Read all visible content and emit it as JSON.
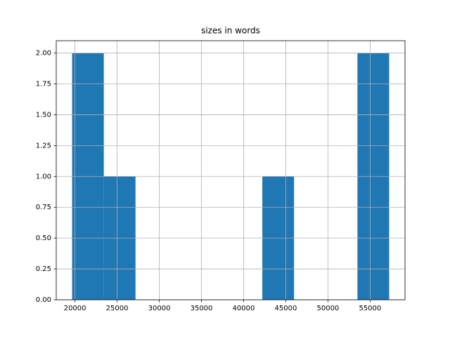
{
  "chart_data": {
    "type": "histogram",
    "title": "sizes in words",
    "bins": [
      19660,
      23420,
      27180,
      30940,
      34700,
      38460,
      42220,
      45980,
      49740,
      53500,
      57260
    ],
    "values": [
      2,
      1,
      0,
      0,
      0,
      0,
      1,
      0,
      0,
      2
    ],
    "color": "#1f77b4",
    "xlim": [
      17780,
      59140
    ],
    "xticks": [
      20000,
      25000,
      30000,
      35000,
      40000,
      45000,
      50000,
      55000
    ],
    "ylim": [
      0,
      2.1
    ],
    "yticks": [
      {
        "value": 0,
        "label": "0.00"
      },
      {
        "value": 0.25,
        "label": "0.25"
      },
      {
        "value": 0.5,
        "label": "0.50"
      },
      {
        "value": 0.75,
        "label": "0.75"
      },
      {
        "value": 1,
        "label": "1.00"
      },
      {
        "value": 1.25,
        "label": "1.25"
      },
      {
        "value": 1.5,
        "label": "1.50"
      },
      {
        "value": 1.75,
        "label": "1.75"
      },
      {
        "value": 2,
        "label": "2.00"
      }
    ],
    "grid": true
  }
}
